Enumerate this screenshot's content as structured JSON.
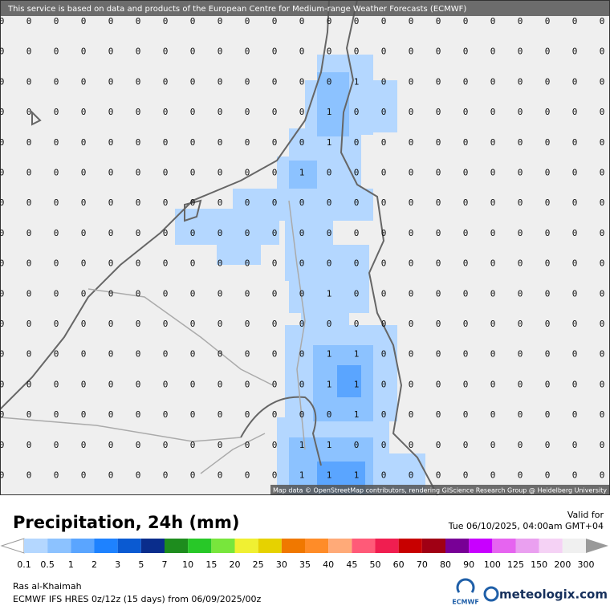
{
  "banner": "This service is based on data and products of the European Centre for Medium-range Weather Forecasts (ECMWF)",
  "attribution": "Map data © OpenStreetMap contributors, rendering GIScience Research Group @ Heidelberg University",
  "grid": {
    "rows": [
      [
        0,
        0,
        0,
        0,
        0,
        0,
        0,
        0,
        0,
        0,
        0,
        0,
        0,
        0,
        0,
        0,
        0,
        0,
        0,
        0,
        0,
        0,
        0
      ],
      [
        0,
        0,
        0,
        0,
        0,
        0,
        0,
        0,
        0,
        0,
        0,
        0,
        0,
        0,
        0,
        0,
        0,
        0,
        0,
        0,
        0,
        0,
        0
      ],
      [
        0,
        0,
        0,
        0,
        0,
        0,
        0,
        0,
        0,
        0,
        0,
        0,
        0,
        1,
        0,
        0,
        0,
        0,
        0,
        0,
        0,
        0,
        0
      ],
      [
        0,
        0,
        0,
        0,
        0,
        0,
        0,
        0,
        0,
        0,
        0,
        0,
        1,
        0,
        0,
        0,
        0,
        0,
        0,
        0,
        0,
        0,
        0
      ],
      [
        0,
        0,
        0,
        0,
        0,
        0,
        0,
        0,
        0,
        0,
        0,
        0,
        1,
        0,
        0,
        0,
        0,
        0,
        0,
        0,
        0,
        0,
        0
      ],
      [
        0,
        0,
        0,
        0,
        0,
        0,
        0,
        0,
        0,
        0,
        0,
        1,
        0,
        0,
        0,
        0,
        0,
        0,
        0,
        0,
        0,
        0,
        0
      ],
      [
        0,
        0,
        0,
        0,
        0,
        0,
        0,
        0,
        0,
        0,
        0,
        0,
        0,
        0,
        0,
        0,
        0,
        0,
        0,
        0,
        0,
        0,
        0
      ],
      [
        0,
        0,
        0,
        0,
        0,
        0,
        0,
        0,
        0,
        0,
        0,
        0,
        0,
        0,
        0,
        0,
        0,
        0,
        0,
        0,
        0,
        0,
        0
      ],
      [
        0,
        0,
        0,
        0,
        0,
        0,
        0,
        0,
        0,
        0,
        0,
        0,
        0,
        0,
        0,
        0,
        0,
        0,
        0,
        0,
        0,
        0,
        0
      ],
      [
        0,
        0,
        0,
        0,
        0,
        0,
        0,
        0,
        0,
        0,
        0,
        0,
        1,
        0,
        0,
        0,
        0,
        0,
        0,
        0,
        0,
        0,
        0
      ],
      [
        0,
        0,
        0,
        0,
        0,
        0,
        0,
        0,
        0,
        0,
        0,
        0,
        0,
        0,
        0,
        0,
        0,
        0,
        0,
        0,
        0,
        0,
        0
      ],
      [
        0,
        0,
        0,
        0,
        0,
        0,
        0,
        0,
        0,
        0,
        0,
        0,
        1,
        1,
        0,
        0,
        0,
        0,
        0,
        0,
        0,
        0,
        0
      ],
      [
        0,
        0,
        0,
        0,
        0,
        0,
        0,
        0,
        0,
        0,
        0,
        0,
        1,
        1,
        0,
        0,
        0,
        0,
        0,
        0,
        0,
        0,
        0
      ],
      [
        0,
        0,
        0,
        0,
        0,
        0,
        0,
        0,
        0,
        0,
        0,
        0,
        0,
        1,
        0,
        0,
        0,
        0,
        0,
        0,
        0,
        0,
        0
      ],
      [
        0,
        0,
        0,
        0,
        0,
        0,
        0,
        0,
        0,
        0,
        0,
        1,
        1,
        0,
        0,
        0,
        0,
        0,
        0,
        0,
        0,
        0,
        0
      ],
      [
        0,
        0,
        0,
        0,
        0,
        0,
        0,
        0,
        0,
        0,
        0,
        1,
        1,
        1,
        0,
        0,
        0,
        0,
        0,
        0,
        0,
        0,
        0
      ]
    ]
  },
  "legend": {
    "title": "Precipitation, 24h (mm)",
    "labels": [
      "0.1",
      "0.5",
      "1",
      "2",
      "3",
      "5",
      "7",
      "10",
      "15",
      "20",
      "25",
      "30",
      "35",
      "40",
      "45",
      "50",
      "60",
      "70",
      "80",
      "90",
      "100",
      "125",
      "150",
      "200",
      "300"
    ]
  },
  "valid": {
    "label": "Valid for",
    "time": "Tue 06/10/2025, 04:00am GMT+04"
  },
  "footer": {
    "location": "Ras al-Khaimah",
    "model": "ECMWF IFS HRES 0z/12z (15 days) from  06/09/2025/00z",
    "logo_left": "ECMWF",
    "logo_right": "meteologix.com"
  }
}
